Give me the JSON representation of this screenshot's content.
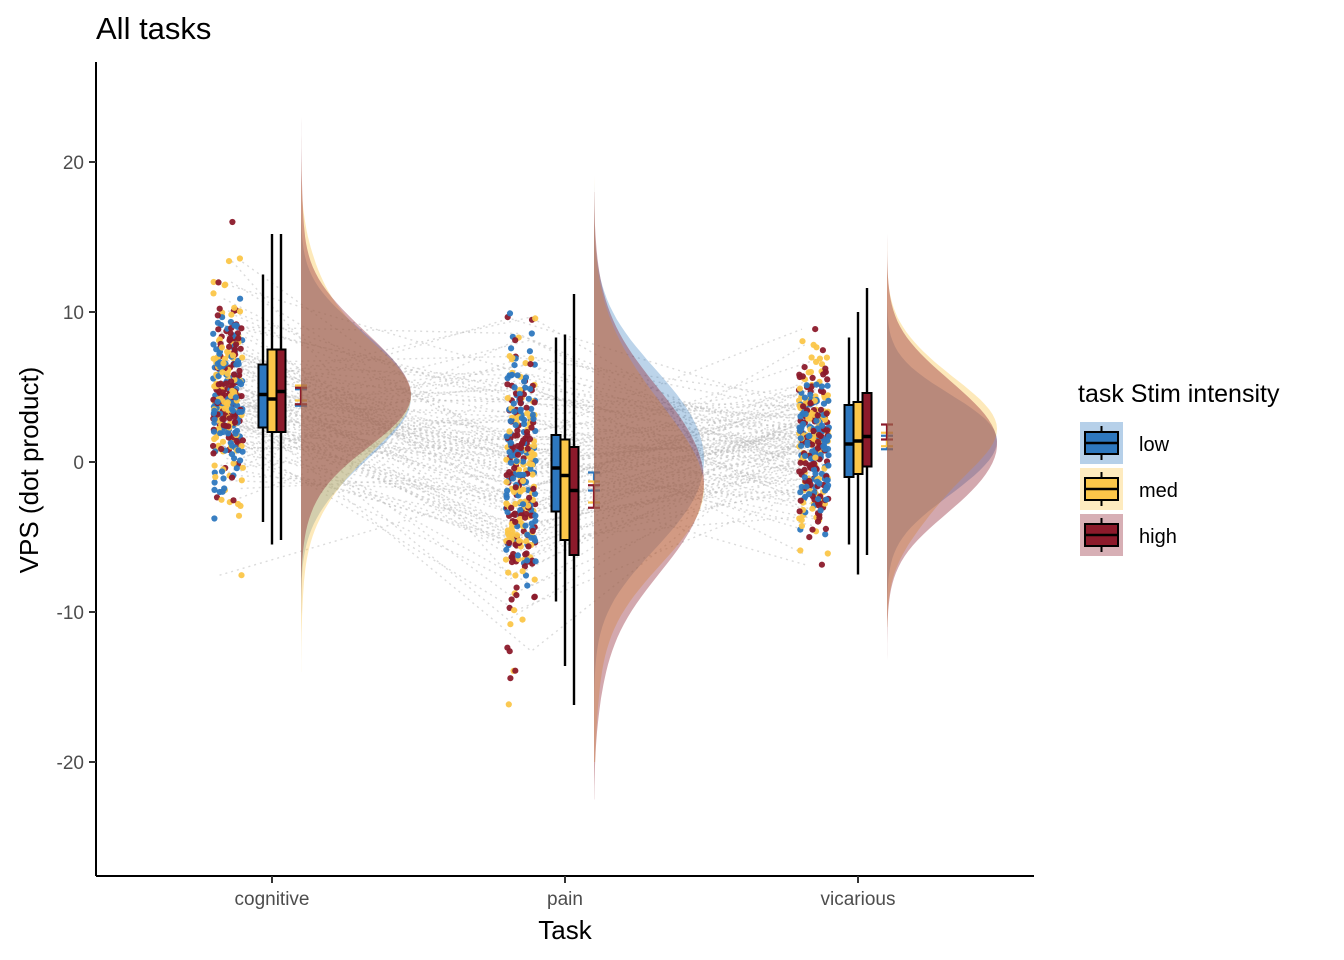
{
  "chart_data": {
    "type": "raincloud",
    "title": "All tasks",
    "xlabel": "Task",
    "ylabel": "VPS  (dot product)",
    "categories": [
      "cognitive",
      "pain",
      "vicarious"
    ],
    "ylim": [
      -27,
      27
    ],
    "yticks": [
      20,
      10,
      0,
      -10,
      -20
    ],
    "grid": false,
    "legend": {
      "title": "task Stim intensity",
      "position": "right",
      "entries": [
        {
          "name": "low",
          "color": "#2e78bf"
        },
        {
          "name": "med",
          "color": "#fbc649"
        },
        {
          "name": "high",
          "color": "#8c1a2b"
        }
      ]
    },
    "series": [
      {
        "name": "low",
        "color": "#2e78bf",
        "stats": [
          {
            "min": -4.0,
            "q1": 2.3,
            "median": 4.5,
            "q3": 6.5,
            "max": 12.5,
            "mean": 4.3,
            "ci": 0.55,
            "n": 110,
            "sd": 4.2,
            "lo": -11,
            "hi": 16
          },
          {
            "min": -9.3,
            "q1": -3.3,
            "median": -0.4,
            "q3": 1.8,
            "max": 8.3,
            "mean": -1.3,
            "ci": 0.6,
            "n": 120,
            "sd": 5.5,
            "lo": -18,
            "hi": 17
          },
          {
            "min": -5.5,
            "q1": -1.0,
            "median": 1.2,
            "q3": 3.8,
            "max": 8.3,
            "mean": 1.3,
            "ci": 0.45,
            "n": 110,
            "sd": 3.5,
            "lo": -11,
            "hi": 14
          }
        ]
      },
      {
        "name": "med",
        "color": "#fbc649",
        "stats": [
          {
            "min": -5.5,
            "q1": 2.0,
            "median": 4.2,
            "q3": 7.5,
            "max": 15.2,
            "mean": 4.6,
            "ci": 0.5,
            "n": 110,
            "sd": 4.5,
            "lo": -11,
            "hi": 17
          },
          {
            "min": -13.6,
            "q1": -5.2,
            "median": -0.9,
            "q3": 1.5,
            "max": 8.5,
            "mean": -2.0,
            "ci": 0.7,
            "n": 120,
            "sd": 6.0,
            "lo": -17,
            "hi": 17
          },
          {
            "min": -7.5,
            "q1": -0.8,
            "median": 1.4,
            "q3": 4.0,
            "max": 10.0,
            "mean": 1.5,
            "ci": 0.45,
            "n": 110,
            "sd": 3.8,
            "lo": -8,
            "hi": 15
          }
        ]
      },
      {
        "name": "high",
        "color": "#8c1a2b",
        "stats": [
          {
            "min": -5.2,
            "q1": 2.0,
            "median": 4.7,
            "q3": 7.5,
            "max": 15.2,
            "mean": 4.4,
            "ci": 0.55,
            "n": 110,
            "sd": 4.6,
            "lo": -10,
            "hi": 20
          },
          {
            "min": -16.2,
            "q1": -6.2,
            "median": -1.9,
            "q3": 1.0,
            "max": 11.2,
            "mean": -2.3,
            "ci": 0.75,
            "n": 120,
            "sd": 6.3,
            "lo": -19.5,
            "hi": 15
          },
          {
            "min": -6.2,
            "q1": -0.3,
            "median": 1.7,
            "q3": 4.6,
            "max": 11.6,
            "mean": 2.0,
            "ci": 0.5,
            "n": 110,
            "sd": 4.0,
            "lo": -11.3,
            "hi": 15.5
          }
        ]
      }
    ]
  }
}
